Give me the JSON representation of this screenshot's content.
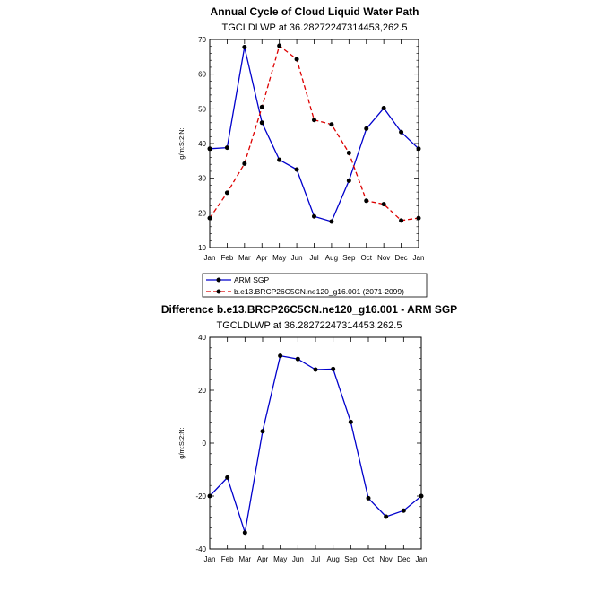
{
  "months": [
    "Jan",
    "Feb",
    "Mar",
    "Apr",
    "May",
    "Jun",
    "Jul",
    "Aug",
    "Sep",
    "Oct",
    "Nov",
    "Dec",
    "Jan"
  ],
  "chart_data": [
    {
      "type": "line",
      "title": "Annual Cycle of Cloud Liquid Water Path",
      "subtitle": "TGCLDLWP at 36.28272247314453,262.5",
      "ylabel": "g/m:S:2:N:",
      "xlabel": "",
      "ylim": [
        10,
        70
      ],
      "yticks": [
        10,
        20,
        30,
        40,
        50,
        60,
        70
      ],
      "categories": [
        "Jan",
        "Feb",
        "Mar",
        "Apr",
        "May",
        "Jun",
        "Jul",
        "Aug",
        "Sep",
        "Oct",
        "Nov",
        "Dec",
        "Jan"
      ],
      "series": [
        {
          "name": "ARM SGP",
          "color": "#0000cc",
          "dash": "",
          "values": [
            38.5,
            38.8,
            67.8,
            46.0,
            35.3,
            32.5,
            19.0,
            17.5,
            29.3,
            44.3,
            50.2,
            43.3,
            38.5
          ]
        },
        {
          "name": "b.e13.BRCP26C5CN.ne120_g16.001 (2071-2099)",
          "color": "#dd0000",
          "dash": "5,3",
          "values": [
            18.5,
            25.8,
            34.2,
            50.5,
            68.2,
            64.3,
            46.8,
            45.5,
            37.3,
            23.5,
            22.5,
            17.8,
            18.5
          ]
        }
      ],
      "legend": [
        {
          "label": "ARM SGP"
        },
        {
          "label": "b.e13.BRCP26C5CN.ne120_g16.001 (2071-2099)"
        }
      ]
    },
    {
      "type": "line",
      "title": "Difference b.e13.BRCP26C5CN.ne120_g16.001 - ARM SGP",
      "subtitle": "TGCLDLWP at 36.28272247314453,262.5",
      "ylabel": "g/m:S:2:N:",
      "xlabel": "",
      "ylim": [
        -40,
        40
      ],
      "yticks": [
        -40,
        -20,
        0,
        20,
        40
      ],
      "categories": [
        "Jan",
        "Feb",
        "Mar",
        "Apr",
        "May",
        "Jun",
        "Jul",
        "Aug",
        "Sep",
        "Oct",
        "Nov",
        "Dec",
        "Jan"
      ],
      "series": [
        {
          "name": "Difference",
          "color": "#0000cc",
          "dash": "",
          "values": [
            -20.0,
            -13.0,
            -33.8,
            4.5,
            33.0,
            31.8,
            27.8,
            28.0,
            8.0,
            -20.8,
            -27.8,
            -25.5,
            -20.0
          ]
        }
      ]
    }
  ]
}
